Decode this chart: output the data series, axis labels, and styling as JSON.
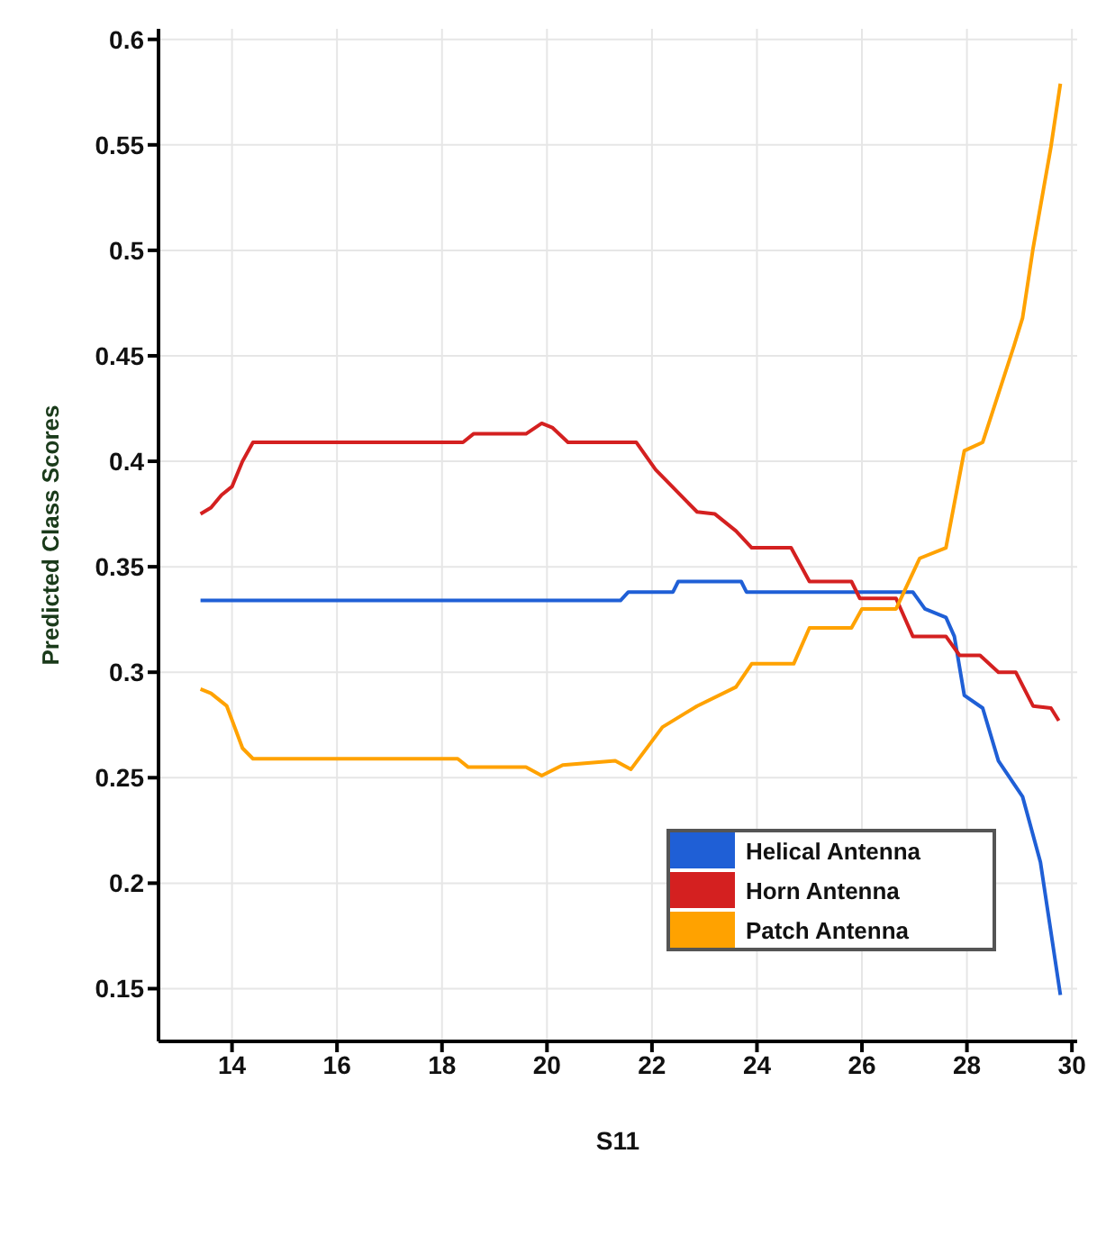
{
  "chart_data": {
    "type": "line",
    "xlabel": "S11",
    "ylabel": "Predicted Class Scores",
    "xlim": [
      12.6,
      30.1
    ],
    "xticks": [
      14,
      16,
      18,
      20,
      22,
      24,
      26,
      28,
      30
    ],
    "ylim": [
      0.125,
      0.605
    ],
    "yticks": [
      0.15,
      0.2,
      0.25,
      0.3,
      0.35,
      0.4,
      0.45,
      0.5,
      0.55,
      0.6
    ],
    "grid": true,
    "legend": "bottom right",
    "marker": "none",
    "line_style": "solid",
    "series": [
      {
        "name": "Helical Antenna",
        "color": "#1f5fd6",
        "x": [
          13.4,
          21.4,
          21.55,
          22.4,
          22.5,
          23.7,
          23.8,
          26.97,
          27.2,
          27.6,
          27.76,
          27.95,
          28.3,
          28.6,
          29.06,
          29.4,
          29.78
        ],
        "values": [
          0.334,
          0.334,
          0.338,
          0.338,
          0.343,
          0.343,
          0.338,
          0.338,
          0.33,
          0.326,
          0.317,
          0.289,
          0.283,
          0.258,
          0.241,
          0.21,
          0.147
        ]
      },
      {
        "name": "Horn Antenna",
        "color": "#d42020",
        "x": [
          13.4,
          13.6,
          13.8,
          14.0,
          14.2,
          14.4,
          18.4,
          18.6,
          19.6,
          19.9,
          20.1,
          20.4,
          21.7,
          22.07,
          22.86,
          23.2,
          23.6,
          23.9,
          24.65,
          25.0,
          25.8,
          25.96,
          26.65,
          26.97,
          27.6,
          27.86,
          28.25,
          28.6,
          28.93,
          29.26,
          29.6,
          29.75
        ],
        "values": [
          0.375,
          0.378,
          0.384,
          0.388,
          0.4,
          0.409,
          0.409,
          0.413,
          0.413,
          0.418,
          0.416,
          0.409,
          0.409,
          0.396,
          0.376,
          0.375,
          0.367,
          0.359,
          0.359,
          0.343,
          0.343,
          0.335,
          0.335,
          0.317,
          0.317,
          0.308,
          0.308,
          0.3,
          0.3,
          0.284,
          0.283,
          0.277
        ]
      },
      {
        "name": "Patch Antenna",
        "color": "#ffa200",
        "x": [
          13.4,
          13.6,
          13.9,
          14.2,
          14.4,
          18.3,
          18.5,
          19.6,
          19.9,
          20.3,
          21.3,
          21.6,
          22.2,
          22.86,
          23.6,
          23.9,
          24.7,
          25.0,
          25.8,
          26.0,
          26.65,
          27.1,
          27.6,
          27.95,
          28.3,
          28.9,
          29.06,
          29.26,
          29.6,
          29.78
        ],
        "values": [
          0.292,
          0.29,
          0.284,
          0.264,
          0.259,
          0.259,
          0.255,
          0.255,
          0.251,
          0.256,
          0.258,
          0.254,
          0.274,
          0.284,
          0.293,
          0.304,
          0.304,
          0.321,
          0.321,
          0.33,
          0.33,
          0.354,
          0.359,
          0.405,
          0.409,
          0.455,
          0.468,
          0.501,
          0.549,
          0.579
        ]
      }
    ]
  }
}
